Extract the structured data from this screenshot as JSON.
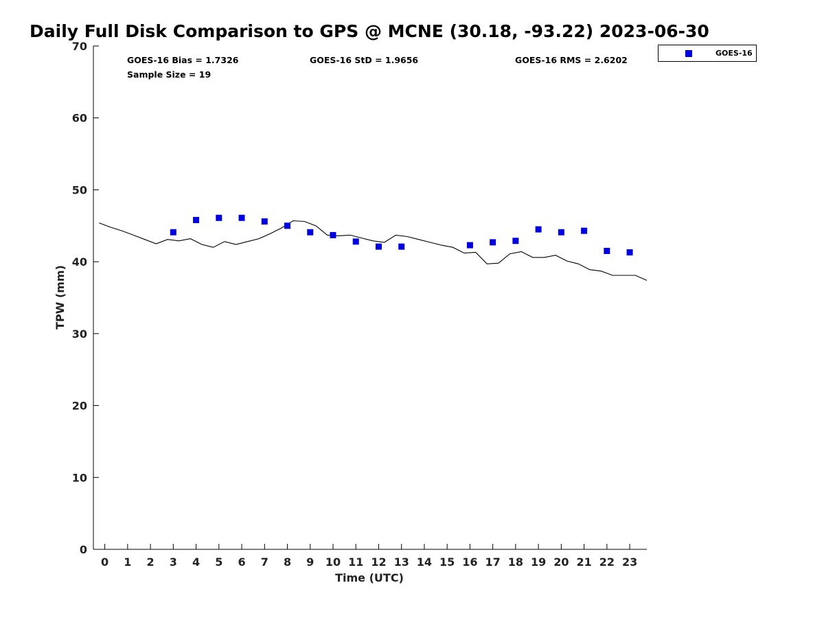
{
  "chart_data": {
    "type": "scatter",
    "title": "Daily Full Disk Comparison to GPS @ MCNE (30.18, -93.22) 2023-06-30",
    "xlabel": "Time (UTC)",
    "ylabel": "TPW (mm)",
    "xlim": [
      -0.5,
      23.75
    ],
    "ylim": [
      0,
      70
    ],
    "x_ticks": [
      0,
      1,
      2,
      3,
      4,
      5,
      6,
      7,
      8,
      9,
      10,
      11,
      12,
      13,
      14,
      15,
      16,
      17,
      18,
      19,
      20,
      21,
      22,
      23
    ],
    "y_ticks": [
      0,
      10,
      20,
      30,
      40,
      50,
      60,
      70
    ],
    "grid": false,
    "legend_position": "outside-top-right",
    "stats": {
      "bias": "GOES-16 Bias = 1.7326",
      "std": "GOES-16 StD = 1.9656",
      "rms": "GOES-16 RMS = 2.6202",
      "sample": "Sample Size = 19"
    },
    "series": [
      {
        "name": "GOES-16",
        "kind": "scatter",
        "marker": "square",
        "color": "#0000dd",
        "x": [
          3,
          4,
          5,
          6,
          7,
          8,
          9,
          10,
          11,
          12,
          13,
          16,
          17,
          18,
          19,
          20,
          21,
          22,
          23
        ],
        "y": [
          44.1,
          45.8,
          46.1,
          46.1,
          45.6,
          45.0,
          44.1,
          43.7,
          42.8,
          42.1,
          42.1,
          42.3,
          42.7,
          42.9,
          44.5,
          44.1,
          44.3,
          41.5,
          41.3
        ]
      },
      {
        "kind": "line",
        "color": "#000000",
        "x": [
          -0.25,
          0.25,
          0.75,
          1.25,
          1.75,
          2.25,
          2.75,
          3.25,
          3.75,
          4.25,
          4.75,
          5.25,
          5.75,
          6.25,
          6.75,
          7.25,
          7.75,
          8.25,
          8.75,
          9.25,
          9.75,
          10.25,
          10.75,
          11.25,
          11.75,
          12.25,
          12.75,
          13.25,
          13.75,
          14.25,
          14.75,
          15.25,
          15.75,
          16.25,
          16.75,
          17.25,
          17.75,
          18.25,
          18.75,
          19.25,
          19.75,
          20.25,
          20.75,
          21.25,
          21.75,
          22.25,
          22.75,
          23.25,
          23.75
        ],
        "y": [
          45.4,
          44.8,
          44.3,
          43.7,
          43.1,
          42.5,
          43.1,
          42.9,
          43.2,
          42.4,
          42.0,
          42.8,
          42.4,
          42.8,
          43.2,
          43.9,
          44.7,
          45.7,
          45.6,
          45.0,
          43.7,
          43.6,
          43.7,
          43.3,
          42.9,
          42.7,
          43.7,
          43.5,
          43.1,
          42.7,
          42.3,
          42.0,
          41.2,
          41.3,
          39.7,
          39.8,
          41.1,
          41.4,
          40.6,
          40.6,
          40.9,
          40.1,
          39.7,
          38.9,
          38.7,
          38.1,
          38.1,
          38.1,
          37.4
        ]
      }
    ]
  }
}
